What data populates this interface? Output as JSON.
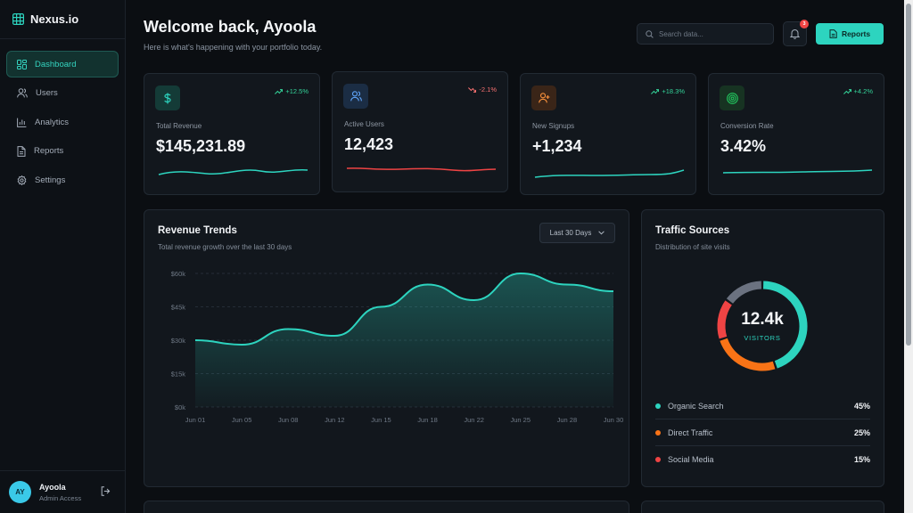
{
  "brand": {
    "name": "Nexus.io"
  },
  "nav": [
    {
      "label": "Dashboard",
      "icon": "dashboard-icon",
      "active": true
    },
    {
      "label": "Users",
      "icon": "users-icon"
    },
    {
      "label": "Analytics",
      "icon": "analytics-icon"
    },
    {
      "label": "Reports",
      "icon": "reports-icon"
    },
    {
      "label": "Settings",
      "icon": "gear-icon"
    }
  ],
  "user": {
    "initials": "AY",
    "name": "Ayoola",
    "role": "Admin Access"
  },
  "header": {
    "title": "Welcome back, Ayoola",
    "subtitle": "Here is what's happening with your portfolio today.",
    "search_placeholder": "Search data...",
    "notification_count": "3",
    "reports_label": "Reports"
  },
  "stats": [
    {
      "label": "Total Revenue",
      "value": "$145,231.89",
      "change": "+12.5%",
      "trend": "up",
      "icon": "dollar-icon",
      "color": "#2dd4bf"
    },
    {
      "label": "Active Users",
      "value": "12,423",
      "change": "-2.1%",
      "trend": "down",
      "icon": "users-icon",
      "color": "#60a5fa"
    },
    {
      "label": "New Signups",
      "value": "+1,234",
      "change": "+18.3%",
      "trend": "up",
      "icon": "user-plus-icon",
      "color": "#f97316"
    },
    {
      "label": "Conversion Rate",
      "value": "3.42%",
      "change": "+4.2%",
      "trend": "up",
      "icon": "target-icon",
      "color": "#22c55e"
    }
  ],
  "revenue": {
    "title": "Revenue Trends",
    "subtitle": "Total revenue growth over the last 30 days",
    "range": "Last 30 Days",
    "chart_data": {
      "type": "area",
      "x": [
        "Jun 01",
        "Jun 05",
        "Jun 08",
        "Jun 12",
        "Jun 15",
        "Jun 18",
        "Jun 22",
        "Jun 25",
        "Jun 28",
        "Jun 30"
      ],
      "y_ticks": [
        "$60k",
        "$45k",
        "$30k",
        "$15k",
        "$0k"
      ],
      "values": [
        30,
        28,
        35,
        32,
        45,
        55,
        48,
        60,
        55,
        52
      ],
      "ylim": [
        0,
        60
      ],
      "color": "#2dd4bf",
      "grid": true
    }
  },
  "traffic": {
    "title": "Traffic Sources",
    "subtitle": "Distribution of site visits",
    "total": "12.4k",
    "total_label": "VISITORS",
    "chart_data": {
      "type": "pie",
      "sources": [
        {
          "name": "Organic Search",
          "value": 45,
          "pct": "45%",
          "color": "#2dd4bf"
        },
        {
          "name": "Direct Traffic",
          "value": 25,
          "pct": "25%",
          "color": "#f97316"
        },
        {
          "name": "Social Media",
          "value": 15,
          "pct": "15%",
          "color": "#ef4444"
        },
        {
          "value": 15,
          "color": "#6b7280"
        }
      ]
    }
  }
}
